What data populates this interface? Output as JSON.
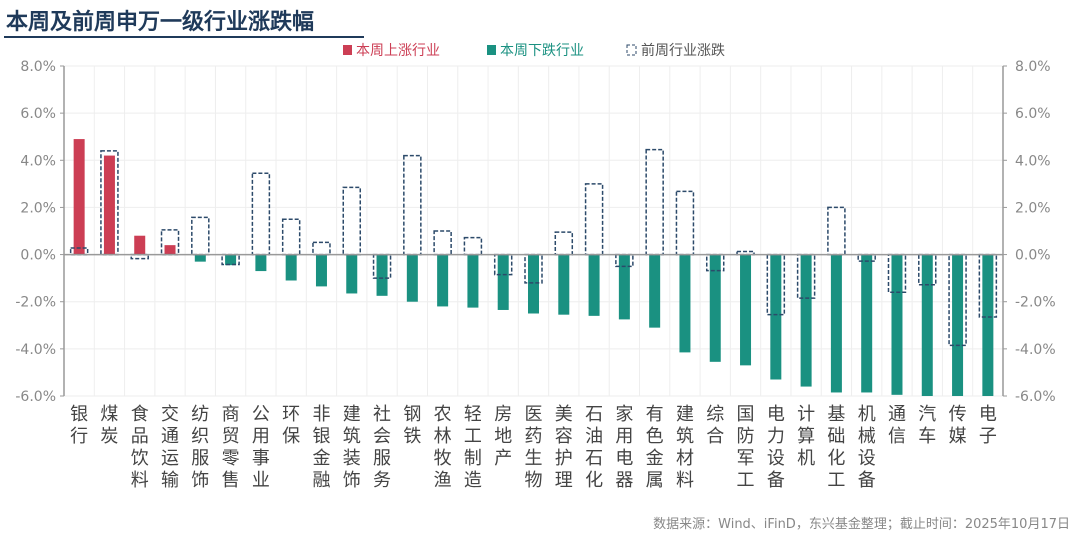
{
  "title": "本周及前周申万一级行业涨跌幅",
  "source": "数据来源：Wind、iFinD，东兴基金整理；截止时间：2025年10月17日",
  "colors": {
    "up": "#cc3e54",
    "down": "#1a9181",
    "prev": "#2c4a6a"
  },
  "chart_data": {
    "type": "bar",
    "title": "本周及前周申万一级行业涨跌幅",
    "legend": [
      "本周上涨行业",
      "本周下跌行业",
      "前周行业涨跌"
    ],
    "legend_position": "top",
    "ylim": [
      -6,
      8
    ],
    "yticks": [
      "8.0%",
      "6.0%",
      "4.0%",
      "2.0%",
      "0.0%",
      "-2.0%",
      "-4.0%",
      "-6.0%"
    ],
    "categories": [
      "银行",
      "煤炭",
      "食品饮料",
      "交通运输",
      "纺织服饰",
      "商贸零售",
      "公用事业",
      "环保",
      "非银金融",
      "建筑装饰",
      "社会服务",
      "钢铁",
      "农林牧渔",
      "轻工制造",
      "房地产",
      "医药生物",
      "美容护理",
      "石油石化",
      "家用电器",
      "有色金属",
      "建筑材料",
      "综合",
      "国防军工",
      "电力设备",
      "计算机",
      "基础化工",
      "机械设备",
      "通信",
      "汽车",
      "传媒",
      "电子"
    ],
    "series": [
      {
        "name": "本周",
        "values": [
          4.9,
          4.2,
          0.8,
          0.4,
          -0.3,
          -0.45,
          -0.7,
          -1.1,
          -1.35,
          -1.65,
          -1.75,
          -2.0,
          -2.2,
          -2.25,
          -2.35,
          -2.5,
          -2.55,
          -2.6,
          -2.75,
          -3.1,
          -4.15,
          -4.55,
          -4.7,
          -5.3,
          -5.6,
          -5.85,
          -5.85,
          -5.95,
          -6.0,
          -6.0,
          -6.0
        ]
      },
      {
        "name": "前周行业涨跌",
        "values": [
          0.28,
          4.4,
          -0.17,
          1.05,
          1.58,
          -0.42,
          3.45,
          1.5,
          0.52,
          2.85,
          -1.0,
          4.2,
          1.0,
          0.72,
          -0.85,
          -1.2,
          0.95,
          3.0,
          -0.5,
          4.45,
          2.68,
          -0.68,
          0.13,
          -2.55,
          -1.85,
          2.0,
          -0.28,
          -1.6,
          -1.28,
          -3.85,
          -2.65
        ]
      }
    ]
  }
}
